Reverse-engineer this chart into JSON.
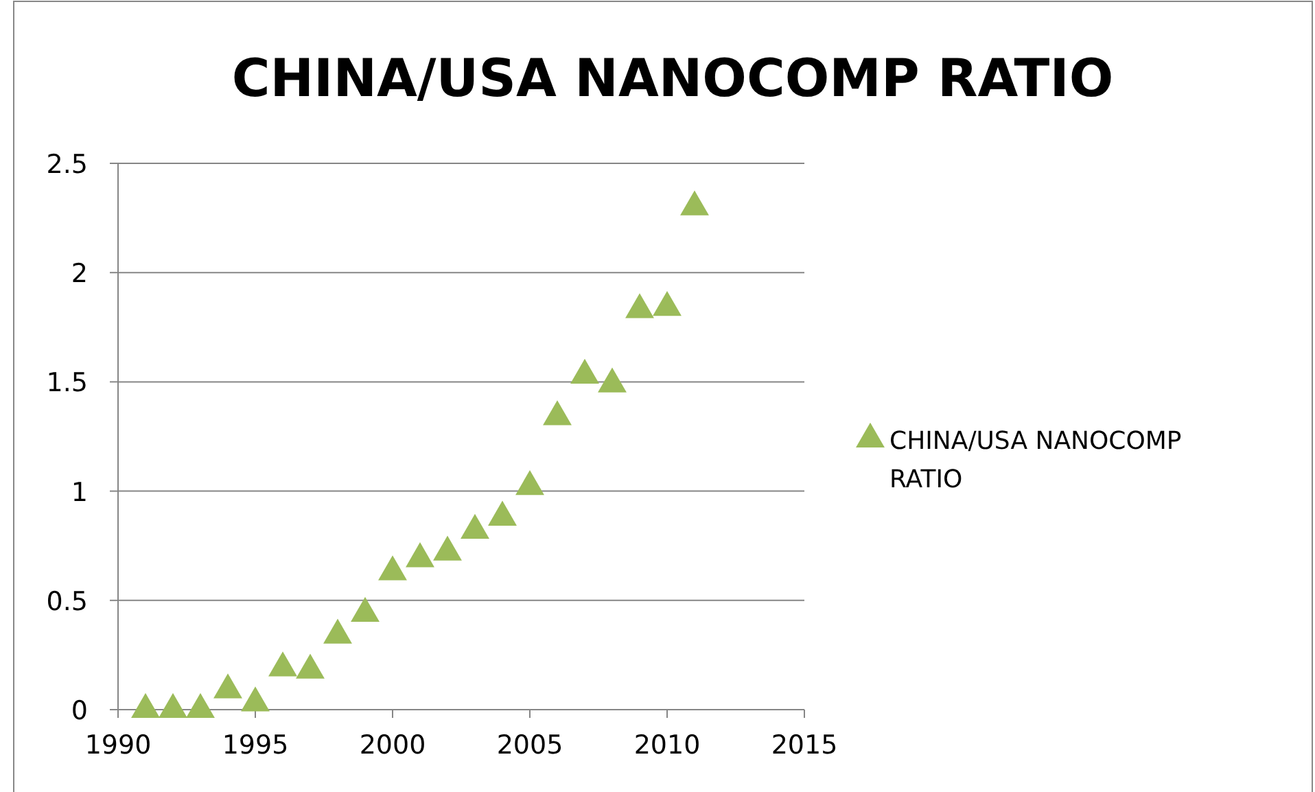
{
  "chart_data": {
    "type": "scatter",
    "title": "CHINA/USA NANOCOMP RATIO",
    "series": [
      {
        "name": "CHINA/USA NANOCOMP RATIO",
        "color": "#9bbb59",
        "x": [
          1991,
          1992,
          1993,
          1994,
          1995,
          1996,
          1997,
          1998,
          1999,
          2000,
          2001,
          2002,
          2003,
          2004,
          2005,
          2006,
          2007,
          2008,
          2009,
          2010,
          2011
        ],
        "values": [
          0,
          0,
          0,
          0.09,
          0.03,
          0.19,
          0.18,
          0.34,
          0.44,
          0.63,
          0.69,
          0.72,
          0.82,
          0.88,
          1.02,
          1.34,
          1.53,
          1.49,
          1.83,
          1.84,
          2.3
        ]
      }
    ],
    "xlim": [
      1990,
      2015
    ],
    "xticks": [
      1990,
      1995,
      2000,
      2005,
      2010,
      2015
    ],
    "ylim": [
      0,
      2.5
    ],
    "yticks": [
      0,
      0.5,
      1,
      1.5,
      2,
      2.5
    ],
    "grid": "y",
    "legend": "right",
    "marker": "triangle"
  }
}
